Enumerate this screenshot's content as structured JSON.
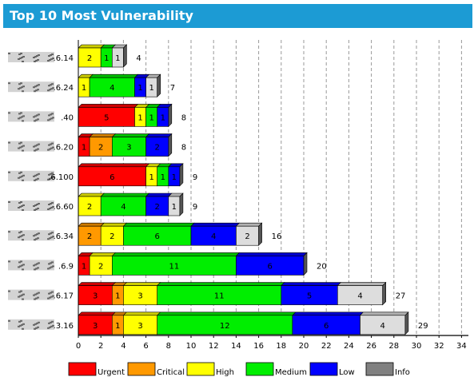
{
  "header": {
    "title": "Top 10 Most Vulnerability"
  },
  "colors": {
    "Urgent": "#ff0000",
    "Critical": "#ff9900",
    "High": "#ffff00",
    "Medium": "#00ee00",
    "Low": "#0000ff",
    "Info": "#dddddd",
    "InfoLegend": "#808080"
  },
  "chart_data": {
    "type": "bar",
    "orientation": "horizontal",
    "stacked": true,
    "title": "Top 10 Most Vulnerability",
    "categories": [
      ".6.14",
      ".6.24",
      ".40",
      ".6.20",
      ".6.100",
      ".6.60",
      ".6.34",
      ".6.9",
      ".6.17",
      ".3.16"
    ],
    "totals": [
      4,
      7,
      8,
      8,
      9,
      9,
      16,
      20,
      27,
      29
    ],
    "series": [
      {
        "name": "Urgent",
        "values": [
          0,
          0,
          5,
          1,
          6,
          0,
          0,
          1,
          3,
          3
        ]
      },
      {
        "name": "Critical",
        "values": [
          0,
          0,
          0,
          2,
          0,
          0,
          2,
          0,
          1,
          1
        ]
      },
      {
        "name": "High",
        "values": [
          2,
          1,
          1,
          0,
          1,
          2,
          2,
          2,
          3,
          3
        ]
      },
      {
        "name": "Medium",
        "values": [
          1,
          4,
          1,
          3,
          1,
          4,
          6,
          11,
          11,
          12
        ]
      },
      {
        "name": "Low",
        "values": [
          0,
          1,
          1,
          2,
          1,
          2,
          4,
          6,
          5,
          6
        ]
      },
      {
        "name": "Info",
        "values": [
          1,
          1,
          0,
          0,
          0,
          1,
          2,
          0,
          4,
          4
        ]
      }
    ],
    "xlim": [
      0,
      35
    ],
    "xticks": [
      0,
      2,
      4,
      6,
      8,
      10,
      12,
      14,
      16,
      18,
      20,
      22,
      24,
      26,
      28,
      30,
      32,
      34
    ],
    "grid": "vertical-dashed",
    "legend": "bottom"
  }
}
